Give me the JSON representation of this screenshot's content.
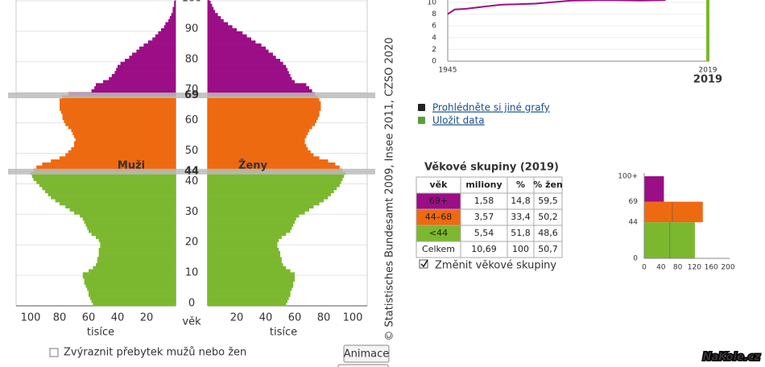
{
  "pyramid": {
    "type": "bar",
    "orientation": "horizontal",
    "men": {
      "name": "Muži",
      "values": [
        57,
        58,
        59,
        60,
        60,
        61,
        62,
        63,
        63,
        64,
        64,
        60,
        57,
        55,
        54,
        54,
        53,
        53,
        53,
        52,
        52,
        53,
        55,
        58,
        60,
        61,
        62,
        63,
        64,
        66,
        70,
        73,
        76,
        80,
        83,
        86,
        88,
        90,
        92,
        94,
        96,
        98,
        99,
        100,
        98,
        96,
        92,
        86,
        80,
        76,
        74,
        72,
        70,
        70,
        69,
        70,
        71,
        72,
        74,
        76,
        77,
        78,
        78,
        79,
        80,
        80,
        80,
        80,
        78,
        74,
        58,
        56,
        55,
        50,
        46,
        44,
        42,
        41,
        40,
        38,
        35,
        32,
        30,
        27,
        25,
        22,
        19,
        16,
        14,
        12,
        10,
        8,
        7,
        5,
        4,
        3,
        2,
        2,
        1,
        1,
        0
      ]
    },
    "women": {
      "name": "Ženy",
      "values": [
        54,
        55,
        56,
        57,
        57,
        58,
        59,
        59,
        60,
        60,
        60,
        57,
        54,
        52,
        51,
        51,
        50,
        50,
        49,
        48,
        48,
        49,
        51,
        54,
        57,
        58,
        59,
        60,
        61,
        63,
        67,
        70,
        73,
        77,
        80,
        83,
        85,
        87,
        89,
        91,
        92,
        93,
        94,
        95,
        93,
        91,
        88,
        83,
        77,
        73,
        71,
        69,
        68,
        67,
        67,
        68,
        69,
        70,
        72,
        74,
        75,
        76,
        77,
        77,
        78,
        78,
        78,
        77,
        76,
        74,
        72,
        70,
        68,
        60,
        58,
        57,
        56,
        55,
        54,
        52,
        50,
        47,
        45,
        42,
        40,
        37,
        33,
        30,
        27,
        24,
        20,
        17,
        14,
        11,
        9,
        7,
        5,
        4,
        3,
        2,
        1
      ]
    },
    "group_boundaries": [
      44,
      69
    ],
    "colors": [
      "#7cb82f",
      "#ee6a10",
      "#9b0e86"
    ],
    "ylim": [
      0,
      100
    ],
    "yticks": [
      0,
      10,
      20,
      30,
      40,
      50,
      60,
      70,
      80,
      90,
      100
    ],
    "ylabel": "věk",
    "xlim": [
      0,
      100
    ],
    "men_xticks": [
      100,
      80,
      60,
      40,
      20
    ],
    "women_xticks": [
      20,
      40,
      60,
      80,
      100
    ],
    "xlabel": "tisíce",
    "source": "© Statistisches Bundesamt 2009, Insee 2011, CZSO 2020"
  },
  "trend": {
    "type": "line",
    "x": [
      1945,
      1947,
      1950,
      1960,
      1970,
      1980,
      1990,
      2000,
      2007
    ],
    "series": [
      {
        "color": "#9b0e86",
        "values": [
          8.0,
          8.8,
          8.9,
          9.6,
          9.8,
          10.3,
          10.4,
          10.3,
          10.4
        ]
      }
    ],
    "xlim": [
      1945,
      2019
    ],
    "xticks": [
      1945,
      2019
    ],
    "ylim": [
      0,
      10
    ],
    "yticks": [
      0,
      2,
      4,
      6,
      8,
      10
    ],
    "highlight_year": 2019,
    "highlight_color": "#7cb82f"
  },
  "links": [
    "Prohlédněte si jiné grafy",
    "Uložit data"
  ],
  "table": {
    "title": "Věkové skupiny (2019)",
    "header": [
      "věk",
      "miliony",
      "%",
      "% žen"
    ],
    "rows": [
      [
        "69+",
        "1,58",
        "14,8",
        "59,5"
      ],
      [
        "44–68",
        "3,57",
        "33,4",
        "50,2"
      ],
      [
        "<44",
        "5,54",
        "51,8",
        "48,6"
      ],
      [
        "Celkem",
        "10,69",
        "100",
        "50,7"
      ]
    ]
  },
  "groups_checkbox": "Změnit věkové skupiny",
  "groups_chart": {
    "type": "bar",
    "values": [
      121,
      140,
      47
    ],
    "splits": [
      61,
      67,
      null
    ],
    "yticks": [
      0,
      44,
      69,
      {
        "value": 100,
        "label": "100+"
      }
    ],
    "xlim": [
      0,
      200
    ],
    "xticks": [
      0,
      40,
      80,
      120,
      160,
      200
    ]
  },
  "surplus_checkbox": "Zvýraznit přebytek mužů nebo žen",
  "button": "Animace",
  "watermark": "NaKole.cz"
}
